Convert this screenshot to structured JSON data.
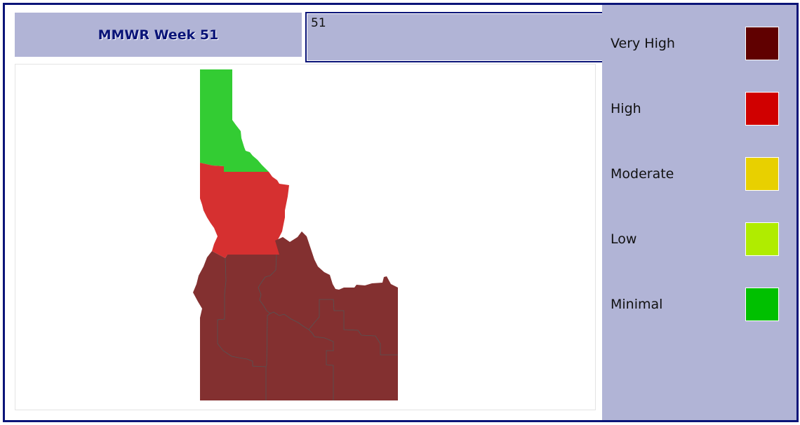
{
  "header": {
    "title": "MMWR Week 51",
    "week_input_value": "51"
  },
  "map": {
    "colors": {
      "minimal_region": "#33cc33",
      "high_region": "#d63030",
      "very_high_region": "#833030",
      "border": "#555555"
    }
  },
  "legend": {
    "items": [
      {
        "label": "Very High",
        "color": "#600000"
      },
      {
        "label": "High",
        "color": "#d00000"
      },
      {
        "label": "Moderate",
        "color": "#e8d000"
      },
      {
        "label": "Low",
        "color": "#b0ec00"
      },
      {
        "label": "Minimal",
        "color": "#00c000"
      }
    ]
  }
}
